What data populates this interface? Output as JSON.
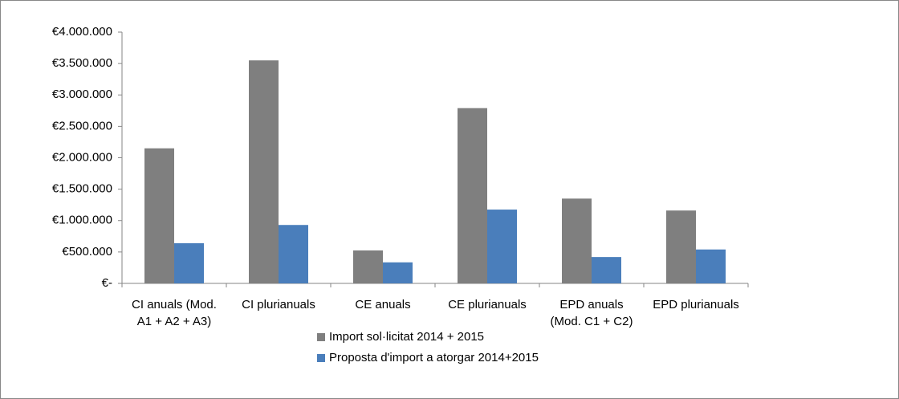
{
  "chart_data": {
    "type": "bar",
    "categories": [
      "CI anuals (Mod. A1 + A2 + A3)",
      "CI plurianuals",
      "CE anuals",
      "CE plurianuals",
      "EPD anuals (Mod. C1 + C2)",
      "EPD plurianuals"
    ],
    "series": [
      {
        "name": "Import sol·licitat 2014 + 2015",
        "color": "#7f7f7f",
        "values": [
          2150000,
          3550000,
          525000,
          2790000,
          1350000,
          1160000
        ]
      },
      {
        "name": "Proposta d'import a atorgar 2014+2015",
        "color": "#4a7ebb",
        "values": [
          640000,
          930000,
          335000,
          1175000,
          420000,
          540000
        ]
      }
    ],
    "ylim": [
      0,
      4000000
    ],
    "yticks": [
      {
        "value": 0,
        "label": "€-"
      },
      {
        "value": 500000,
        "label": "€500.000"
      },
      {
        "value": 1000000,
        "label": "€1.000.000"
      },
      {
        "value": 1500000,
        "label": "€1.500.000"
      },
      {
        "value": 2000000,
        "label": "€2.000.000"
      },
      {
        "value": 2500000,
        "label": "€2.500.000"
      },
      {
        "value": 3000000,
        "label": "€3.000.000"
      },
      {
        "value": 3500000,
        "label": "€3.500.000"
      },
      {
        "value": 4000000,
        "label": "€4.000.000"
      }
    ],
    "grid": false,
    "legend": "bottom"
  }
}
